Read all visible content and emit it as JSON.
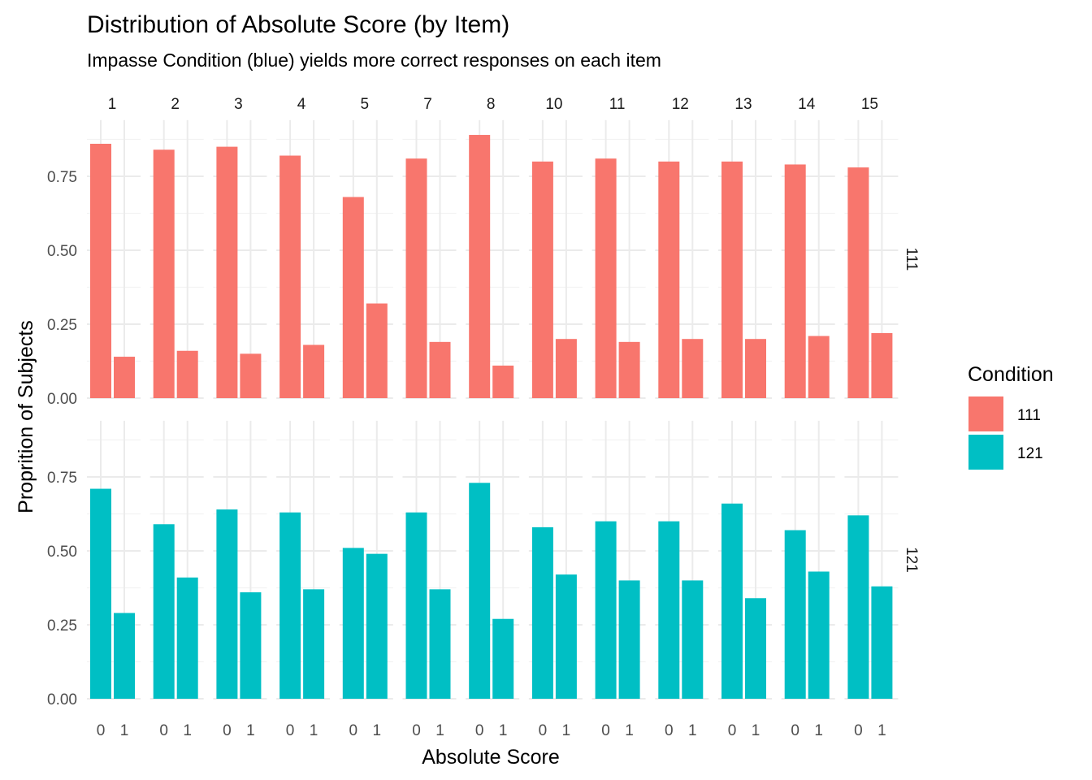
{
  "chart_data": {
    "type": "bar",
    "title": "Distribution of Absolute Score (by Item)",
    "subtitle": "Impasse Condition (blue) yields more correct responses on each item",
    "xlabel": "Absolute Score",
    "ylabel": "Proprition of Subjects",
    "ylim": [
      0,
      0.94
    ],
    "yticks": [
      "0.00",
      "0.25",
      "0.50",
      "0.75"
    ],
    "ytick_values": [
      0,
      0.25,
      0.5,
      0.75
    ],
    "grid": true,
    "legend_position": "right",
    "facet_columns": [
      "1",
      "2",
      "3",
      "4",
      "5",
      "7",
      "8",
      "10",
      "11",
      "12",
      "13",
      "14",
      "15"
    ],
    "categories": [
      "0",
      "1"
    ],
    "series": [
      {
        "name": "111",
        "color": "#F8766D",
        "values": [
          [
            0.86,
            0.14
          ],
          [
            0.84,
            0.16
          ],
          [
            0.85,
            0.15
          ],
          [
            0.82,
            0.18
          ],
          [
            0.68,
            0.32
          ],
          [
            0.81,
            0.19
          ],
          [
            0.89,
            0.11
          ],
          [
            0.8,
            0.2
          ],
          [
            0.81,
            0.19
          ],
          [
            0.8,
            0.2
          ],
          [
            0.8,
            0.2
          ],
          [
            0.79,
            0.21
          ],
          [
            0.78,
            0.22
          ]
        ]
      },
      {
        "name": "121",
        "color": "#00BFC4",
        "values": [
          [
            0.71,
            0.29
          ],
          [
            0.59,
            0.41
          ],
          [
            0.64,
            0.36
          ],
          [
            0.63,
            0.37
          ],
          [
            0.51,
            0.49
          ],
          [
            0.63,
            0.37
          ],
          [
            0.73,
            0.27
          ],
          [
            0.58,
            0.42
          ],
          [
            0.6,
            0.4
          ],
          [
            0.6,
            0.4
          ],
          [
            0.66,
            0.34
          ],
          [
            0.57,
            0.43
          ],
          [
            0.62,
            0.38
          ]
        ]
      }
    ],
    "legend": {
      "title": "Condition",
      "items": [
        {
          "label": "111",
          "color": "#F8766D"
        },
        {
          "label": "121",
          "color": "#00BFC4"
        }
      ]
    }
  }
}
